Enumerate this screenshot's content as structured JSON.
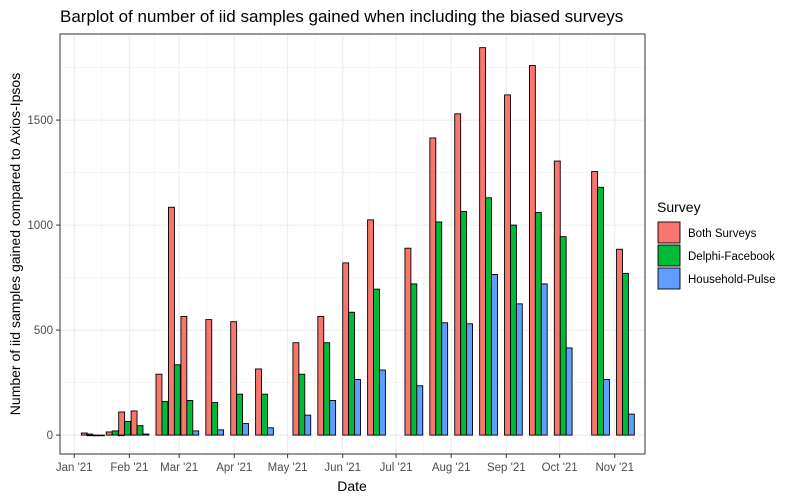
{
  "chart_data": {
    "type": "bar",
    "title": "Barplot of number of iid samples gained when including the biased surveys",
    "xlabel": "Date",
    "ylabel": "Number of iid samples gained compared to Axios-Ipsos",
    "xlim": [
      "2020-12-24",
      "2021-11-18"
    ],
    "ylim": [
      -90,
      1910
    ],
    "grid": true,
    "legend_position": "right",
    "x_ticks": [
      {
        "date": "2021-01-01",
        "label": "Jan '21"
      },
      {
        "date": "2021-02-01",
        "label": "Feb '21"
      },
      {
        "date": "2021-03-01",
        "label": "Mar '21"
      },
      {
        "date": "2021-04-01",
        "label": "Apr '21"
      },
      {
        "date": "2021-05-01",
        "label": "May '21"
      },
      {
        "date": "2021-06-01",
        "label": "Jun '21"
      },
      {
        "date": "2021-07-01",
        "label": "Jul '21"
      },
      {
        "date": "2021-08-01",
        "label": "Aug '21"
      },
      {
        "date": "2021-09-01",
        "label": "Sep '21"
      },
      {
        "date": "2021-10-01",
        "label": "Oct '21"
      },
      {
        "date": "2021-11-01",
        "label": "Nov '21"
      }
    ],
    "y_ticks": [
      0,
      500,
      1000,
      1500
    ],
    "legend_title": "Survey",
    "series": [
      {
        "name": "Both Surveys",
        "color": "#F8766D"
      },
      {
        "name": "Delphi-Facebook",
        "color": "#00BA38"
      },
      {
        "name": "Household-Pulse",
        "color": "#619CFF"
      }
    ],
    "data": [
      {
        "date": "2021-01-10",
        "values": [
          10,
          0,
          0
        ]
      },
      {
        "date": "2021-01-13",
        "values": [
          5,
          0,
          0
        ]
      },
      {
        "date": "2021-01-24",
        "values": [
          15,
          20,
          0
        ]
      },
      {
        "date": "2021-01-31",
        "values": [
          110,
          65,
          10
        ]
      },
      {
        "date": "2021-02-07",
        "values": [
          115,
          45,
          5
        ]
      },
      {
        "date": "2021-02-21",
        "values": [
          290,
          160,
          60
        ]
      },
      {
        "date": "2021-02-28",
        "values": [
          1085,
          335,
          130
        ]
      },
      {
        "date": "2021-03-07",
        "values": [
          565,
          165,
          20
        ]
      },
      {
        "date": "2021-03-21",
        "values": [
          550,
          155,
          25
        ]
      },
      {
        "date": "2021-04-04",
        "values": [
          540,
          195,
          55
        ]
      },
      {
        "date": "2021-04-18",
        "values": [
          315,
          195,
          35
        ]
      },
      {
        "date": "2021-05-09",
        "values": [
          440,
          290,
          95
        ]
      },
      {
        "date": "2021-05-23",
        "values": [
          565,
          440,
          165
        ]
      },
      {
        "date": "2021-06-06",
        "values": [
          820,
          585,
          265
        ]
      },
      {
        "date": "2021-06-20",
        "values": [
          1025,
          695,
          310
        ]
      },
      {
        "date": "2021-07-11",
        "values": [
          890,
          720,
          235
        ]
      },
      {
        "date": "2021-07-25",
        "values": [
          1415,
          1015,
          535
        ]
      },
      {
        "date": "2021-08-08",
        "values": [
          1530,
          1065,
          530
        ]
      },
      {
        "date": "2021-08-22",
        "values": [
          1845,
          1130,
          765
        ]
      },
      {
        "date": "2021-09-05",
        "values": [
          1620,
          1000,
          625
        ]
      },
      {
        "date": "2021-09-19",
        "values": [
          1760,
          1060,
          720
        ]
      },
      {
        "date": "2021-10-03",
        "values": [
          1305,
          945,
          415
        ]
      },
      {
        "date": "2021-10-24",
        "values": [
          1255,
          1180,
          265
        ]
      },
      {
        "date": "2021-11-07",
        "values": [
          885,
          770,
          100
        ]
      }
    ]
  }
}
